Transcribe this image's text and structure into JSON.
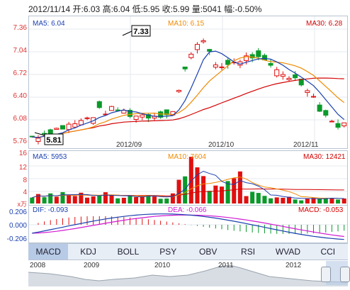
{
  "header": {
    "date": "2012/11/14",
    "open_label": "开:",
    "open": "6.03",
    "high_label": "高:",
    "high": "6.04",
    "low_label": "低:",
    "low": "5.95",
    "close_label": "收:",
    "close": "5.99",
    "vol_label": "量:",
    "vol": "5041",
    "chg_label": "幅:",
    "chg": "-0.50%"
  },
  "price_panel": {
    "y_ticks": [
      "7.36",
      "7.04",
      "6.72",
      "6.40",
      "6.08",
      "5.76"
    ],
    "ma5": "MA5: 6.04",
    "ma10": "MA10: 6.15",
    "ma30": "MA30: 6.28",
    "high_marker": "7.33",
    "low_marker": "5.81",
    "x_labels": [
      "2012/09",
      "2012/10",
      "2012/11"
    ]
  },
  "volume_panel": {
    "y_ticks": [
      "16",
      "12",
      "8",
      "4"
    ],
    "unit": "x万",
    "ma5": "MA5: 5953",
    "ma10": "MA10: 7604",
    "ma30": "MA30: 12421"
  },
  "macd_panel": {
    "y_ticks": [
      "0.206",
      "0.000",
      "-0.206"
    ],
    "dif": "DIF: -0.093",
    "dea": "DEA: -0.066",
    "macd": "MACD: -0.053"
  },
  "tabs": [
    "MACD",
    "KDJ",
    "BOLL",
    "PSY",
    "OBV",
    "RSI",
    "WVAD",
    "CCI"
  ],
  "active_tab": "MACD",
  "timeline": {
    "years": [
      "2008",
      "2009",
      "2010",
      "2011",
      "2012"
    ]
  },
  "colors": {
    "up": "#e01010",
    "down": "#0a9a2a",
    "ma5": "#1a3fb0",
    "ma10": "#f08a00",
    "ma30": "#d40000",
    "macd_up": "#e01010",
    "macd_down": "#0a9a2a",
    "dea": "#d21ad2",
    "border": "#b9c4d3"
  }
}
